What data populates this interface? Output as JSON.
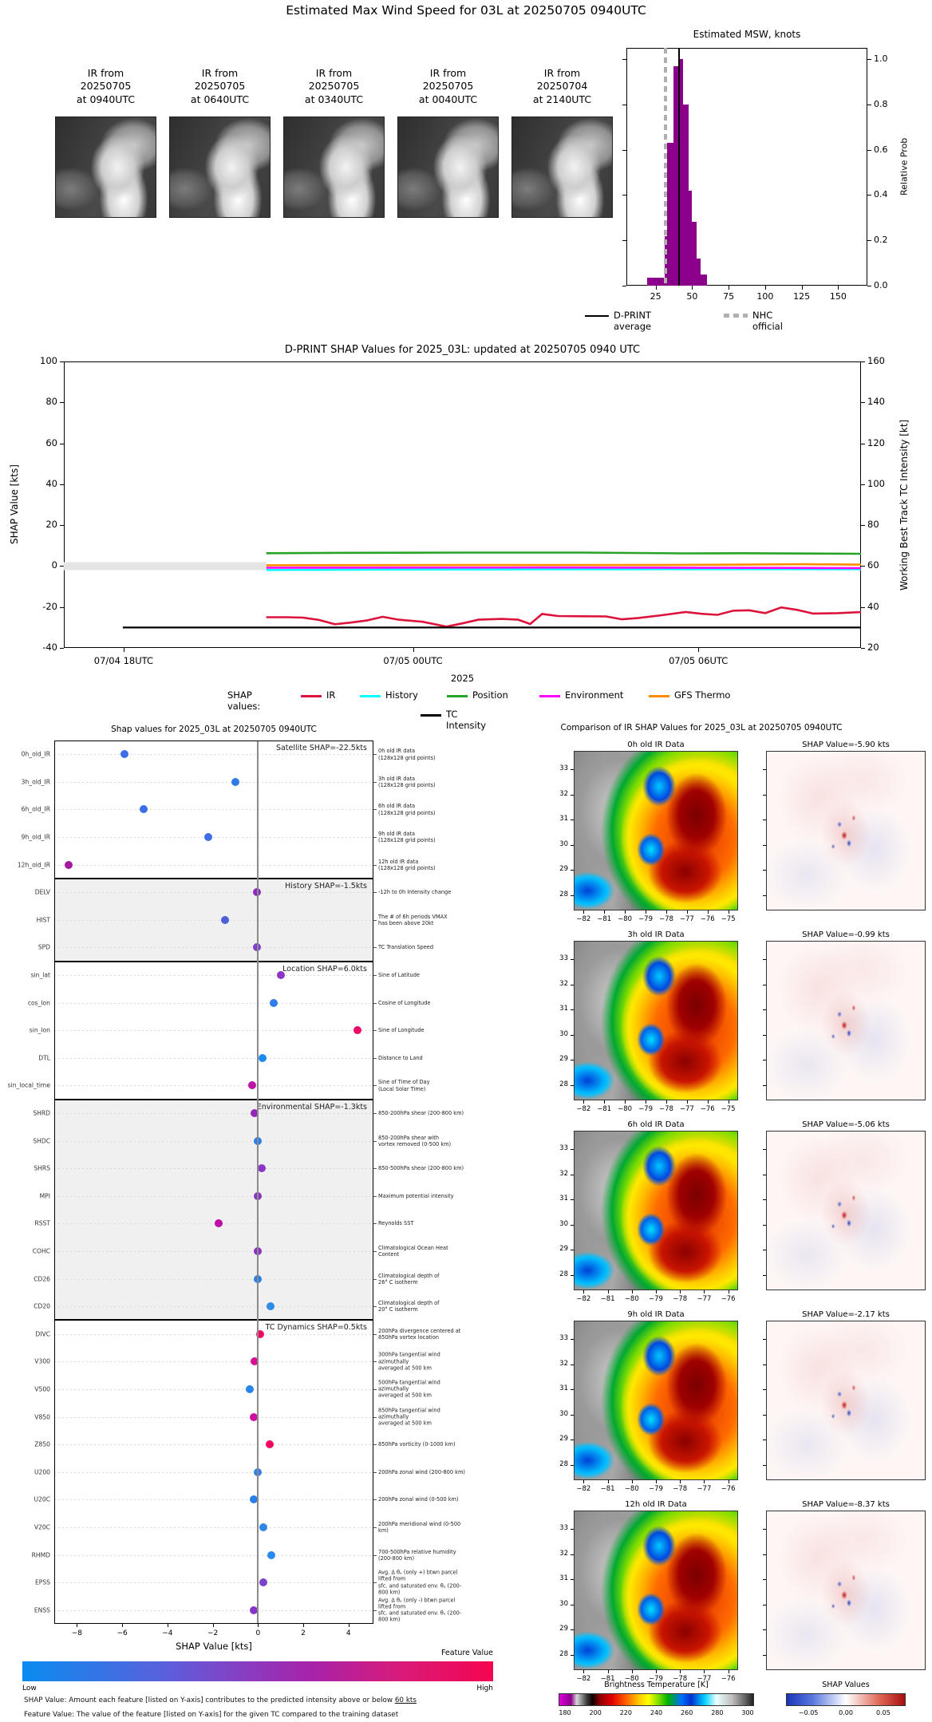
{
  "header": {
    "title": "Estimated Max Wind Speed for 03L at 20250705 0940UTC"
  },
  "thumbnails": [
    {
      "label": "IR from\n20250705\nat 0940UTC"
    },
    {
      "label": "IR from\n20250705\nat 0640UTC"
    },
    {
      "label": "IR from\n20250705\nat 0340UTC"
    },
    {
      "label": "IR from\n20250705\nat 0040UTC"
    },
    {
      "label": "IR from\n20250704\nat 2140UTC"
    }
  ],
  "chart_data": [
    {
      "type": "bar",
      "title": "Estimated MSW, knots",
      "ylabel": "Relative Prob",
      "yticks": [
        "1.0",
        "0.8",
        "0.6",
        "0.4",
        "0.2",
        "0.0"
      ],
      "xticks": [
        25,
        50,
        75,
        100,
        125,
        150
      ],
      "xlim": [
        5,
        170
      ],
      "ylim": [
        0,
        1.05
      ],
      "bar_color": "#8a008a",
      "bars": [
        [
          19,
          31,
          0.035
        ],
        [
          31,
          33,
          0.22
        ],
        [
          33,
          37,
          0.63
        ],
        [
          37,
          40.5,
          0.97
        ],
        [
          40.5,
          44,
          1.0
        ],
        [
          44,
          47.5,
          0.8
        ],
        [
          47.5,
          50,
          0.42
        ],
        [
          50,
          53,
          0.28
        ],
        [
          53,
          56,
          0.12
        ],
        [
          56,
          60,
          0.05
        ]
      ],
      "avg_line": {
        "value": 41,
        "label": "D-PRINT average",
        "color": "#000000"
      },
      "nhc_line": {
        "value": 32,
        "label": "NHC official",
        "color": "#b0b0b0"
      }
    },
    {
      "type": "line",
      "title": "D-PRINT SHAP Values for 2025_03L: updated at 20250705 0940 UTC",
      "ylabel_left": "SHAP Value [kts]",
      "ylabel_right": "Working Best Track TC Intensity [kt]",
      "xlabel": "2025",
      "ylim": [
        -40,
        100
      ],
      "yticks_left": [
        100,
        80,
        60,
        40,
        20,
        0,
        -20,
        -40
      ],
      "yticks_right": [
        160,
        140,
        120,
        100,
        80,
        60,
        40,
        20
      ],
      "xticks": [
        {
          "pct": 7.5,
          "label": "07/04 18UTC"
        },
        {
          "pct": 43.8,
          "label": "07/05 00UTC"
        },
        {
          "pct": 79.6,
          "label": "07/05 06UTC"
        }
      ],
      "legend_prefix": "SHAP values:",
      "series": [
        {
          "name": "History",
          "color": "#00FFFF",
          "row": 1,
          "points": [
            [
              25.4,
              -1.9
            ],
            [
              40,
              -1.7
            ],
            [
              60,
              -1.6
            ],
            [
              80,
              -1.5
            ],
            [
              100,
              -1.5
            ]
          ]
        },
        {
          "name": "Environment",
          "color": "#FF00FF",
          "row": 1,
          "points": [
            [
              25.4,
              -0.8
            ],
            [
              60,
              -0.7
            ],
            [
              90,
              -0.9
            ],
            [
              100,
              -1.0
            ]
          ]
        },
        {
          "name": "GFS Thermo",
          "color": "#FF8C00",
          "row": 1,
          "points": [
            [
              25.4,
              0.4
            ],
            [
              50,
              0.5
            ],
            [
              75,
              0.5
            ],
            [
              93,
              0.9
            ],
            [
              100,
              0.7
            ]
          ]
        },
        {
          "name": "Position",
          "color": "#27a327",
          "row": 1,
          "points": [
            [
              25.4,
              6.3
            ],
            [
              35,
              6.5
            ],
            [
              50,
              6.6
            ],
            [
              65,
              6.6
            ],
            [
              78,
              6.2
            ],
            [
              85,
              6.3
            ],
            [
              100,
              6.0
            ]
          ]
        },
        {
          "name": "IR",
          "color": "#DC143C",
          "row": 1,
          "points": [
            [
              25.4,
              -25
            ],
            [
              28,
              -25
            ],
            [
              30,
              -25.2
            ],
            [
              32,
              -26.3
            ],
            [
              34,
              -28.4
            ],
            [
              36,
              -27.6
            ],
            [
              38,
              -26.6
            ],
            [
              40,
              -24.8
            ],
            [
              42,
              -26.2
            ],
            [
              45,
              -27.2
            ],
            [
              48,
              -29.6
            ],
            [
              50,
              -28
            ],
            [
              52,
              -26.2
            ],
            [
              55,
              -25.8
            ],
            [
              57,
              -26.2
            ],
            [
              58.5,
              -28.3
            ],
            [
              60,
              -23.4
            ],
            [
              62,
              -24.4
            ],
            [
              65,
              -24.5
            ],
            [
              68,
              -24.6
            ],
            [
              70,
              -26
            ],
            [
              72,
              -25.4
            ],
            [
              75,
              -24
            ],
            [
              78,
              -22.4
            ],
            [
              80,
              -23.3
            ],
            [
              82,
              -23.8
            ],
            [
              84,
              -21.8
            ],
            [
              86,
              -21.6
            ],
            [
              88,
              -23
            ],
            [
              90,
              -20.2
            ],
            [
              92,
              -21.4
            ],
            [
              94,
              -23.2
            ],
            [
              97,
              -23
            ],
            [
              100,
              -22.5
            ]
          ]
        },
        {
          "name": "TC Intensity",
          "color": "#000000",
          "row": 2,
          "points": [
            [
              7.4,
              -30
            ],
            [
              100,
              -30
            ]
          ]
        }
      ],
      "legend_order_row1": [
        "IR",
        "History",
        "Position",
        "Environment",
        "GFS Thermo"
      ],
      "zero_band": {
        "from_pct": 0,
        "to_pct": 25.4,
        "color": "#e4e4e4"
      }
    },
    {
      "type": "scatter",
      "title": "Shap values for 2025_03L at 20250705 0940UTC",
      "xlabel": "SHAP Value [kts]",
      "xticks": [
        -8,
        -6,
        -4,
        -2,
        0,
        2,
        4
      ],
      "xlim": [
        -9,
        5.1
      ],
      "sections": [
        {
          "name": "Satellite",
          "annotation": "Satellite SHAP=-22.5kts",
          "bg": "#ffffff",
          "rows": [
            {
              "label": "0h_old_IR",
              "value": -5.9,
              "color": "#3a6fe8",
              "desc": "0h old IR data\n(128x128 grid points)"
            },
            {
              "label": "3h_old_IR",
              "value": -1.0,
              "color": "#2f7ce8",
              "desc": "3h old IR data\n(128x128 grid points)"
            },
            {
              "label": "6h_old_IR",
              "value": -5.05,
              "color": "#3a6fe8",
              "desc": "6h old IR data\n(128x128 grid points)"
            },
            {
              "label": "9h_old_IR",
              "value": -2.2,
              "color": "#3f6ee4",
              "desc": "9h old IR data\n(128x128 grid points)"
            },
            {
              "label": "12h_old_IR",
              "value": -8.35,
              "color": "#a618a0",
              "desc": "12h old IR data\n(128x128 grid points)"
            }
          ]
        },
        {
          "name": "History",
          "annotation": "History SHAP=-1.5kts",
          "bg": "#f0f0f0",
          "rows": [
            {
              "label": "DELV",
              "value": -0.05,
              "color": "#8a2bbf",
              "desc": "-12h to 0h Intensity change"
            },
            {
              "label": "HIST",
              "value": -1.45,
              "color": "#4a5fd8",
              "desc": "The # of 6h periods VMAX\nhas been above 20kt"
            },
            {
              "label": "SPD",
              "value": -0.05,
              "color": "#7d3fd0",
              "desc": "TC Translation Speed"
            }
          ]
        },
        {
          "name": "Location",
          "annotation": "Location SHAP=6.0kts",
          "bg": "#ffffff",
          "rows": [
            {
              "label": "sin_lat",
              "value": 1.0,
              "color": "#8c35c8",
              "desc": "Sine of Latitude"
            },
            {
              "label": "cos_lon",
              "value": 0.7,
              "color": "#2f7de8",
              "desc": "Cosine of Longitude"
            },
            {
              "label": "sin_lon",
              "value": 4.4,
              "color": "#f00768",
              "desc": "Sine of Longitude"
            },
            {
              "label": "DTL",
              "value": 0.2,
              "color": "#1f8af0",
              "desc": "Distance to Land"
            },
            {
              "label": "sin_local_time",
              "value": -0.25,
              "color": "#c013a8",
              "desc": "Sine of Time of Day\n(Local Solar Time)"
            }
          ]
        },
        {
          "name": "Environmental",
          "annotation": "Environmental SHAP=-1.3kts",
          "bg": "#f0f0f0",
          "rows": [
            {
              "label": "SHRD",
              "value": -0.15,
              "color": "#9227b8",
              "desc": "850-200hPa shear (200-800 km)"
            },
            {
              "label": "SHDC",
              "value": 0.0,
              "color": "#2a80e8",
              "desc": "850-200hPa shear with\nvortex removed (0-500 km)"
            },
            {
              "label": "SHRS",
              "value": 0.15,
              "color": "#8c35c8",
              "desc": "850-500hPa shear (200-800 km)"
            },
            {
              "label": "MPI",
              "value": 0.0,
              "color": "#8a35c0",
              "desc": "Maximum potential intensity"
            },
            {
              "label": "RSST",
              "value": -1.75,
              "color": "#bd0fa8",
              "desc": "Reynolds SST"
            },
            {
              "label": "COHC",
              "value": 0.0,
              "color": "#8c2fc0",
              "desc": "Climatological Ocean Heat Content"
            },
            {
              "label": "CD26",
              "value": 0.0,
              "color": "#2a80e8",
              "desc": "Climatological depth of\n26° C isotherm"
            },
            {
              "label": "CD20",
              "value": 0.55,
              "color": "#2f8ae8",
              "desc": "Climatological depth of\n20° C isotherm"
            }
          ]
        },
        {
          "name": "TC Dynamics",
          "annotation": "TC Dynamics SHAP=0.5kts",
          "bg": "#ffffff",
          "rows": [
            {
              "label": "DIVC",
              "value": 0.1,
              "color": "#f2075f",
              "desc": "200hPa divergence centered at\n850hPa vortex location"
            },
            {
              "label": "V300",
              "value": -0.15,
              "color": "#d80f93",
              "desc": "300hPa tangential wind azimuthally\naveraged at 500 km"
            },
            {
              "label": "V500",
              "value": -0.35,
              "color": "#2a85e8",
              "desc": "500hPa tangential wind azimuthally\naveraged at 500 km"
            },
            {
              "label": "V850",
              "value": -0.2,
              "color": "#cc0f9f",
              "desc": "850hPa tangential wind azimuthally\naveraged at 500 km"
            },
            {
              "label": "Z850",
              "value": 0.5,
              "color": "#ee0760",
              "desc": "850hPa vorticity (0-1000 km)"
            },
            {
              "label": "U200",
              "value": 0.0,
              "color": "#2f80e8",
              "desc": "200hPa zonal wind (200-800 km)"
            },
            {
              "label": "U20C",
              "value": -0.2,
              "color": "#2a7de8",
              "desc": "200hPa zonal wind (0-500 km)"
            },
            {
              "label": "V20C",
              "value": 0.25,
              "color": "#2f85e8",
              "desc": "200hPa meridional wind (0-500 km)"
            },
            {
              "label": "RHMD",
              "value": 0.6,
              "color": "#2a8af0",
              "desc": "700-500hPa relative humidity\n(200-800 km)"
            },
            {
              "label": "EPSS",
              "value": 0.25,
              "color": "#7d42cc",
              "desc": "Avg. Δ θₑ (only +) btwn parcel lifted from\nsfc. and saturated env. θₑ (200-800 km)"
            },
            {
              "label": "ENSS",
              "value": -0.2,
              "color": "#8535c8",
              "desc": "Avg. Δ θₑ (only -) btwn parcel lifted from\nsfc. and saturated env. θₑ (200-800 km)"
            }
          ]
        }
      ],
      "colorbar": {
        "label": "Feature Value",
        "low": "Low",
        "high": "High"
      },
      "footnotes": [
        {
          "pre": "SHAP Value: Amount each feature [listed on Y-axis] contributes to the predicted intensity above or below ",
          "u": "60 kts"
        },
        {
          "pre": "Feature Value: The value of the feature [listed on Y-axis] for the given TC compared to the training dataset",
          "u": ""
        }
      ]
    }
  ],
  "ir_comparison": {
    "title": "Comparison of IR SHAP Values for 2025_03L at 20250705 0940UTC",
    "rows": [
      {
        "ir_title": "0h old IR Data",
        "shap_title": "SHAP Value=-5.90 kts",
        "lat_ticks": [
          33,
          32,
          31,
          30,
          29,
          28
        ],
        "lon_ticks": [
          -82,
          -81,
          -80,
          -79,
          -78,
          -77,
          -76,
          -75
        ]
      },
      {
        "ir_title": "3h old IR Data",
        "shap_title": "SHAP Value=-0.99 kts",
        "lat_ticks": [
          33,
          32,
          31,
          30,
          29,
          28
        ],
        "lon_ticks": [
          -82,
          -81,
          -80,
          -79,
          -78,
          -77,
          -76,
          -75
        ]
      },
      {
        "ir_title": "6h old IR Data",
        "shap_title": "SHAP Value=-5.06 kts",
        "lat_ticks": [
          33,
          32,
          31,
          30,
          29,
          28
        ],
        "lon_ticks": [
          -82,
          -81,
          -80,
          -79,
          -78,
          -77,
          -76
        ]
      },
      {
        "ir_title": "9h old IR Data",
        "shap_title": "SHAP Value=-2.17 kts",
        "lat_ticks": [
          33,
          32,
          31,
          30,
          29,
          28
        ],
        "lon_ticks": [
          -82,
          -81,
          -80,
          -79,
          -78,
          -77,
          -76
        ]
      },
      {
        "ir_title": "12h old IR Data",
        "shap_title": "SHAP Value=-8.37 kts",
        "lat_ticks": [
          33,
          32,
          31,
          30,
          29,
          28
        ],
        "lon_ticks": [
          -82,
          -81,
          -80,
          -79,
          -78,
          -77,
          -76
        ]
      }
    ],
    "bt_colorbar": {
      "title": "Brightness Temperature [K]",
      "ticks": [
        180,
        200,
        220,
        240,
        260,
        280,
        300
      ]
    },
    "shap_colorbar": {
      "title": "SHAP Values",
      "ticks": [
        "-0.05",
        "0.00",
        "0.05"
      ]
    }
  }
}
